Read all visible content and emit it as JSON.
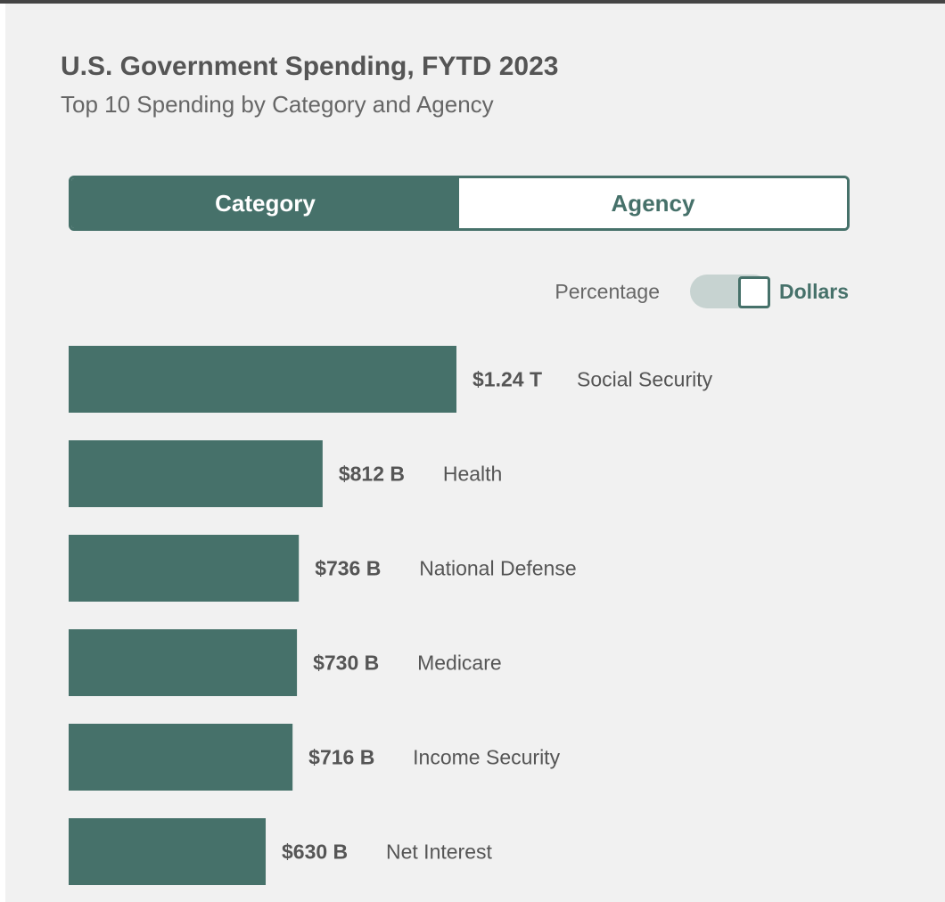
{
  "header": {
    "title": "U.S. Government Spending, FYTD 2023",
    "subtitle": "Top 10 Spending by Category and Agency"
  },
  "tabs": [
    {
      "label": "Category",
      "active": true
    },
    {
      "label": "Agency",
      "active": false
    }
  ],
  "toggle": {
    "off_label": "Percentage",
    "on_label": "Dollars",
    "selected": "Dollars"
  },
  "colors": {
    "accent": "#46716a",
    "background": "#f1f1f1",
    "toggle_track": "#c7d3d1"
  },
  "chart_data": {
    "type": "bar",
    "orientation": "horizontal",
    "title": "",
    "categories": [
      "Social Security",
      "Health",
      "National Defense",
      "Medicare",
      "Income Security",
      "Net Interest"
    ],
    "values": [
      1240,
      812,
      736,
      730,
      716,
      630
    ],
    "value_unit": "billion USD",
    "value_labels": [
      "$1.24 T",
      "$812 B",
      "$736 B",
      "$730 B",
      "$716 B",
      "$630 B"
    ],
    "grid": false,
    "legend": "none"
  }
}
